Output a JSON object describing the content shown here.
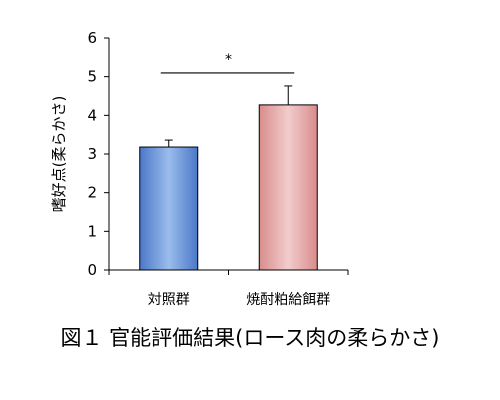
{
  "chart_data": {
    "type": "bar",
    "categories": [
      "対照群",
      "焼酎粕給餌群"
    ],
    "values": [
      3.18,
      4.27
    ],
    "errors": [
      0.18,
      0.49
    ],
    "ylabel": "嗜好点(柔らかさ)",
    "ylim": [
      0,
      6
    ],
    "yticks": [
      "0",
      "1",
      "2",
      "3",
      "4",
      "5",
      "6"
    ],
    "significance": "*",
    "grid": false,
    "colors": {
      "control": "#5b8ad6",
      "treatment": "#e3a0a0"
    }
  },
  "caption": "図１ 官能評価結果(ロース肉の柔らかさ)"
}
